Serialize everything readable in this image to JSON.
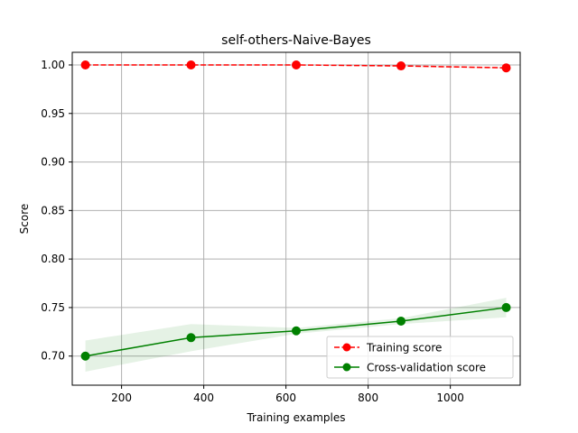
{
  "chart_data": {
    "type": "line",
    "title": "self-others-Naive-Bayes",
    "xlabel": "Training examples",
    "ylabel": "Score",
    "xlim": [
      80,
      1170
    ],
    "ylim": [
      0.67,
      1.013
    ],
    "xticks": [
      200,
      400,
      600,
      800,
      1000
    ],
    "xtick_labels": [
      "200",
      "400",
      "600",
      "800",
      "1000"
    ],
    "yticks": [
      0.7,
      0.75,
      0.8,
      0.85,
      0.9,
      0.95,
      1.0
    ],
    "ytick_labels": [
      "0.70",
      "0.75",
      "0.80",
      "0.85",
      "0.90",
      "0.95",
      "1.00"
    ],
    "grid": true,
    "legend_position": "lower-right",
    "x": [
      112,
      369,
      625,
      880,
      1136
    ],
    "series": [
      {
        "name": "Training score",
        "color": "#ff0000",
        "line_style": "dashed",
        "marker": "circle",
        "values": [
          1.0,
          1.0,
          1.0,
          0.999,
          0.997
        ],
        "band_low": [
          1.0,
          1.0,
          1.0,
          0.998,
          0.996
        ],
        "band_high": [
          1.0,
          1.0,
          1.0,
          1.0,
          0.998
        ]
      },
      {
        "name": "Cross-validation score",
        "color": "#008000",
        "line_style": "solid",
        "marker": "circle",
        "values": [
          0.7,
          0.719,
          0.726,
          0.736,
          0.75
        ],
        "band_low": [
          0.684,
          0.705,
          0.723,
          0.733,
          0.74
        ],
        "band_high": [
          0.716,
          0.733,
          0.729,
          0.739,
          0.76
        ]
      }
    ]
  }
}
